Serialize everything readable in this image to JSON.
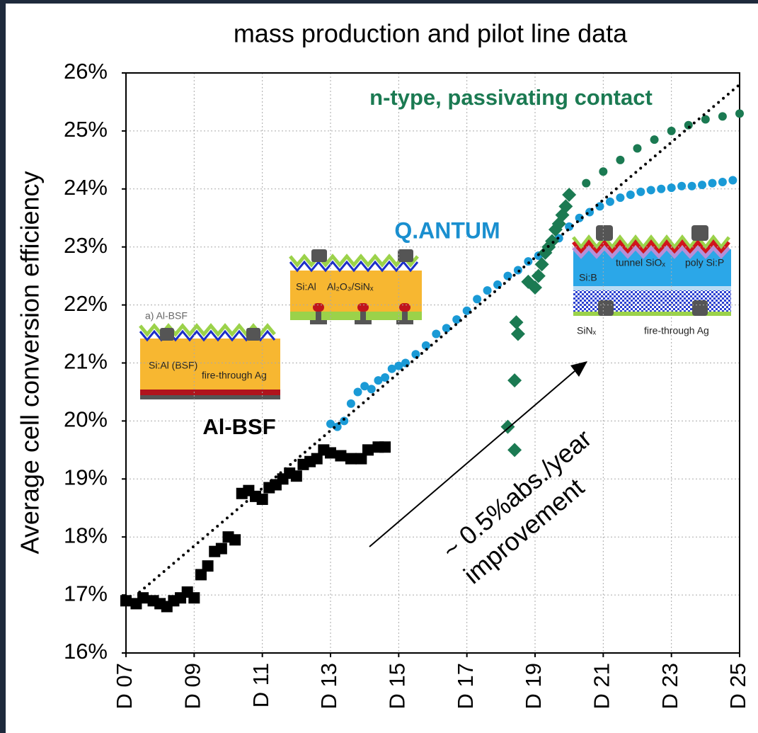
{
  "chart_data": {
    "type": "scatter",
    "title": "mass production and pilot line data",
    "ylabel": "Average cell conversion efficiency",
    "xlim": [
      7,
      25
    ],
    "xticks": [
      {
        "value": 7,
        "label": "D 07"
      },
      {
        "value": 9,
        "label": "D 09"
      },
      {
        "value": 11,
        "label": "D 11"
      },
      {
        "value": 13,
        "label": "D 13"
      },
      {
        "value": 15,
        "label": "D 15"
      },
      {
        "value": 17,
        "label": "D 17"
      },
      {
        "value": 19,
        "label": "D 19"
      },
      {
        "value": 21,
        "label": "D 21"
      },
      {
        "value": 23,
        "label": "D 23"
      },
      {
        "value": 25,
        "label": "D 25"
      }
    ],
    "ylim": [
      16,
      26
    ],
    "yticks": [
      {
        "value": 16,
        "label": "16%"
      },
      {
        "value": 17,
        "label": "17%"
      },
      {
        "value": 18,
        "label": "18%"
      },
      {
        "value": 19,
        "label": "19%"
      },
      {
        "value": 20,
        "label": "20%"
      },
      {
        "value": 21,
        "label": "21%"
      },
      {
        "value": 22,
        "label": "22%"
      },
      {
        "value": 23,
        "label": "23%"
      },
      {
        "value": 24,
        "label": "24%"
      },
      {
        "value": 25,
        "label": "25%"
      },
      {
        "value": 26,
        "label": "26%"
      }
    ],
    "grid": true,
    "series": [
      {
        "color": "#000000",
        "marker": "square",
        "x": [
          7.0,
          7.3,
          7.5,
          7.8,
          8.0,
          8.2,
          8.4,
          8.6,
          8.8,
          9.0,
          9.2,
          9.4,
          9.6,
          9.8,
          10.0,
          10.2,
          10.4,
          10.6,
          10.8,
          11.0,
          11.2,
          11.4,
          11.6,
          11.8,
          12.0,
          12.2,
          12.4,
          12.6,
          12.8,
          13.0,
          13.3,
          13.6,
          13.9,
          14.1,
          14.4,
          14.6
        ],
        "values": [
          16.9,
          16.85,
          16.95,
          16.9,
          16.85,
          16.8,
          16.9,
          16.95,
          17.05,
          16.95,
          17.35,
          17.5,
          17.75,
          17.8,
          18.0,
          17.95,
          18.75,
          18.8,
          18.7,
          18.65,
          18.85,
          18.9,
          19.0,
          19.1,
          19.05,
          19.25,
          19.3,
          19.35,
          19.5,
          19.45,
          19.4,
          19.35,
          19.35,
          19.5,
          19.55,
          19.55
        ]
      },
      {
        "color": "#1a9ad6",
        "marker": "circle",
        "x": [
          13.0,
          13.2,
          13.4,
          13.6,
          13.8,
          14.0,
          14.2,
          14.4,
          14.6,
          14.8,
          15.0,
          15.2,
          15.5,
          15.8,
          16.1,
          16.4,
          16.7,
          17.0,
          17.3,
          17.6,
          17.9,
          18.2,
          18.5,
          18.8,
          19.1,
          19.4,
          19.7,
          20.0,
          20.3,
          20.6,
          20.9,
          21.2,
          21.5,
          21.8,
          22.1,
          22.4,
          22.7,
          23.0,
          23.3,
          23.6,
          23.9,
          24.2,
          24.5,
          24.8
        ],
        "values": [
          19.95,
          19.9,
          20.0,
          20.3,
          20.5,
          20.6,
          20.55,
          20.7,
          20.75,
          20.9,
          20.95,
          21.0,
          21.15,
          21.3,
          21.5,
          21.6,
          21.75,
          21.9,
          22.1,
          22.25,
          22.35,
          22.5,
          22.6,
          22.75,
          22.85,
          23.0,
          23.15,
          23.35,
          23.5,
          23.6,
          23.7,
          23.78,
          23.85,
          23.9,
          23.95,
          23.98,
          24.0,
          24.02,
          24.05,
          24.05,
          24.07,
          24.1,
          24.12,
          24.15
        ]
      },
      {
        "color": "#1b7a52",
        "marker": "diamond",
        "x": [
          18.2,
          18.4,
          18.4,
          18.5,
          18.45,
          18.8,
          19.0,
          19.1,
          19.2,
          19.3,
          19.4,
          19.5,
          19.6,
          19.7,
          19.8,
          19.9,
          20.0
        ],
        "values": [
          19.9,
          19.5,
          20.7,
          21.5,
          21.7,
          22.4,
          22.3,
          22.5,
          22.7,
          22.9,
          23.0,
          23.1,
          23.3,
          23.4,
          23.55,
          23.7,
          23.9
        ]
      },
      {
        "color": "#1b7a52",
        "marker": "circle",
        "x": [
          20.5,
          21.0,
          21.5,
          22.0,
          22.5,
          23.0,
          23.5,
          24.0,
          24.5,
          25.0
        ],
        "values": [
          24.1,
          24.3,
          24.5,
          24.7,
          24.85,
          25.0,
          25.1,
          25.2,
          25.25,
          25.3
        ]
      },
      {
        "color": "#000000",
        "marker": "dotted-line",
        "x": [
          7.4,
          25.0
        ],
        "values": [
          17.05,
          25.8
        ]
      }
    ],
    "annotations": [
      "Al-BSF",
      "Q.ANTUM",
      "n-type, passivating contact",
      "~ 0.5%abs./year",
      "improvement"
    ],
    "insets": [
      {
        "labels": [
          "a) Al-BSF",
          "Si:Al (BSF)",
          "fire-through Ag"
        ]
      },
      {
        "labels": [
          "Si:Al",
          "Al₂O₃/SiNₓ"
        ]
      },
      {
        "labels": [
          "Si:B",
          "tunnel SiOₓ",
          "poly Si:P",
          "SiNₓ",
          "fire-through Ag"
        ]
      }
    ]
  }
}
